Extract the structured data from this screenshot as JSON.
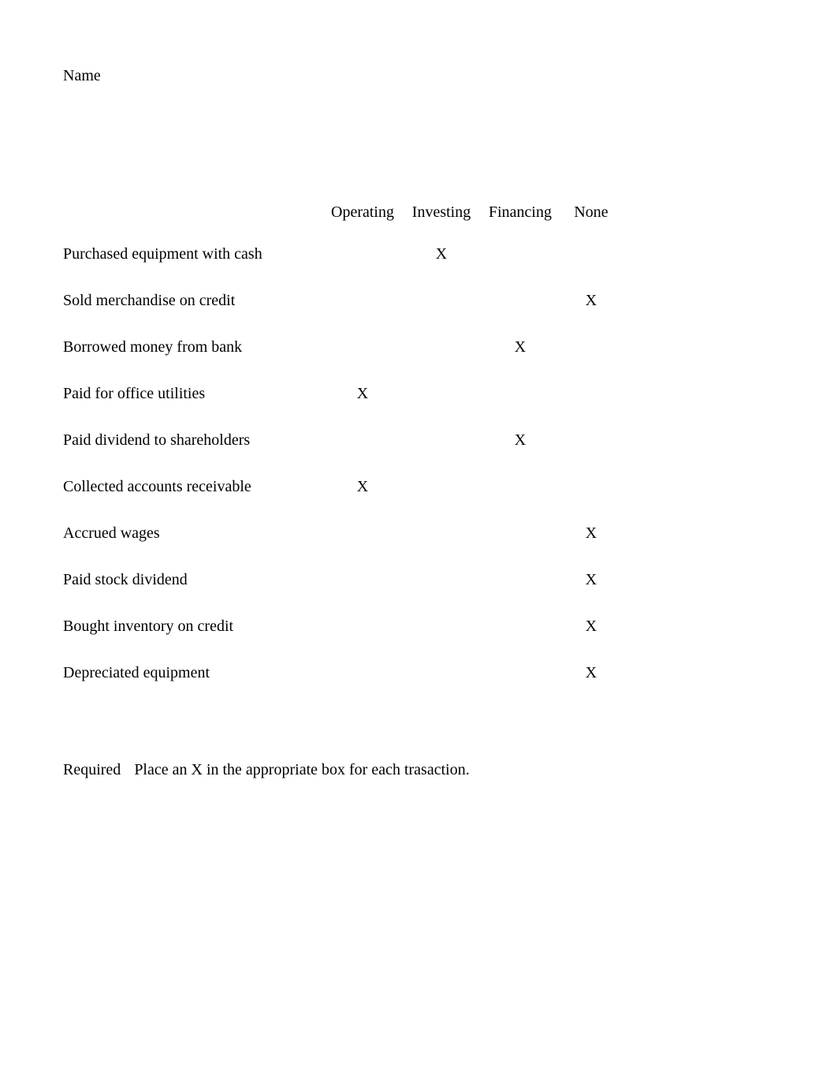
{
  "document": {
    "name_label": "Name",
    "background_color": "#ffffff",
    "text_color": "#000000",
    "font_family": "Times New Roman"
  },
  "table": {
    "columns": {
      "operating": "Operating",
      "investing": "Investing",
      "financing": "Financing",
      "none": "None"
    },
    "rows": [
      {
        "description": "Purchased equipment with cash",
        "operating": "",
        "investing": "X",
        "financing": "",
        "none": ""
      },
      {
        "description": "Sold merchandise on credit",
        "operating": "",
        "investing": "",
        "financing": "",
        "none": "X"
      },
      {
        "description": "Borrowed money from bank",
        "operating": "",
        "investing": "",
        "financing": "X",
        "none": ""
      },
      {
        "description": "Paid for office utilities",
        "operating": "X",
        "investing": "",
        "financing": "",
        "none": ""
      },
      {
        "description": "Paid dividend to shareholders",
        "operating": "",
        "investing": "",
        "financing": "X",
        "none": ""
      },
      {
        "description": "Collected accounts receivable",
        "operating": "X",
        "investing": "",
        "financing": "",
        "none": ""
      },
      {
        "description": "Accrued wages",
        "operating": "",
        "investing": "",
        "financing": "",
        "none": "X"
      },
      {
        "description": "Paid stock dividend",
        "operating": "",
        "investing": "",
        "financing": "",
        "none": "X"
      },
      {
        "description": "Bought inventory on credit",
        "operating": "",
        "investing": "",
        "financing": "",
        "none": "X"
      },
      {
        "description": "Depreciated equipment",
        "operating": "",
        "investing": "",
        "financing": "",
        "none": "X"
      }
    ]
  },
  "required": {
    "label": "Required",
    "text": "Place an X in the appropriate box for each trasaction."
  }
}
